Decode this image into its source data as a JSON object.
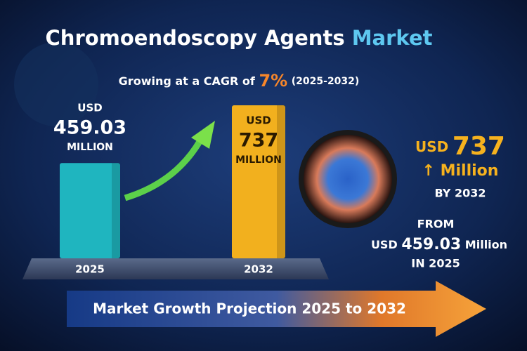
{
  "chart_data": {
    "type": "bar",
    "title": {
      "main": "Chromoendoscopy Agents",
      "highlight": "Market"
    },
    "subtitle": {
      "prefix": "Growing at a CAGR of",
      "cagr": "7%",
      "period": "(2025-2032)"
    },
    "categories": [
      "2025",
      "2032"
    ],
    "values": [
      459.03,
      737
    ],
    "colors": [
      "#1fb5bf",
      "#f2b01e"
    ],
    "currency": "USD",
    "unit": "MILLION",
    "callout": {
      "unit": "Million",
      "by": "BY 2032",
      "from": "FROM",
      "from_unit": "Million",
      "from_year": "IN 2025"
    },
    "banner": "Market Growth Projection 2025 to 2032"
  }
}
